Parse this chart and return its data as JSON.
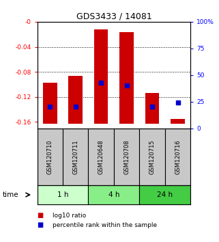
{
  "title": "GDS3433 / 14081",
  "samples": [
    "GSM120710",
    "GSM120711",
    "GSM120648",
    "GSM120708",
    "GSM120715",
    "GSM120716"
  ],
  "log10_ratio": [
    -0.097,
    -0.086,
    -0.012,
    -0.016,
    -0.114,
    -0.155
  ],
  "bar_bottom": [
    -0.163,
    -0.163,
    -0.163,
    -0.163,
    -0.163,
    -0.163
  ],
  "percentile_rank": [
    20,
    20,
    43,
    40,
    20,
    24
  ],
  "time_groups": [
    {
      "label": "1 h",
      "cols": [
        0,
        1
      ],
      "color": "#ccffcc"
    },
    {
      "label": "4 h",
      "cols": [
        2,
        3
      ],
      "color": "#88ee88"
    },
    {
      "label": "24 h",
      "cols": [
        4,
        5
      ],
      "color": "#44cc44"
    }
  ],
  "bar_color": "#cc0000",
  "marker_color": "#0000cc",
  "left_ylim": [
    -0.17,
    0.0
  ],
  "left_yticks": [
    0.0,
    -0.04,
    -0.08,
    -0.12,
    -0.16
  ],
  "left_yticklabels": [
    "-0",
    "-0.04",
    "-0.08",
    "-0.12",
    "-0.16"
  ],
  "right_yticks": [
    0,
    25,
    50,
    75,
    100
  ],
  "right_yticklabels": [
    "0",
    "25",
    "50",
    "75",
    "100%"
  ],
  "background_color": "#ffffff",
  "label_area_color": "#c8c8c8",
  "legend_ratio_label": "log10 ratio",
  "legend_pct_label": "percentile rank within the sample",
  "time_label": "time"
}
